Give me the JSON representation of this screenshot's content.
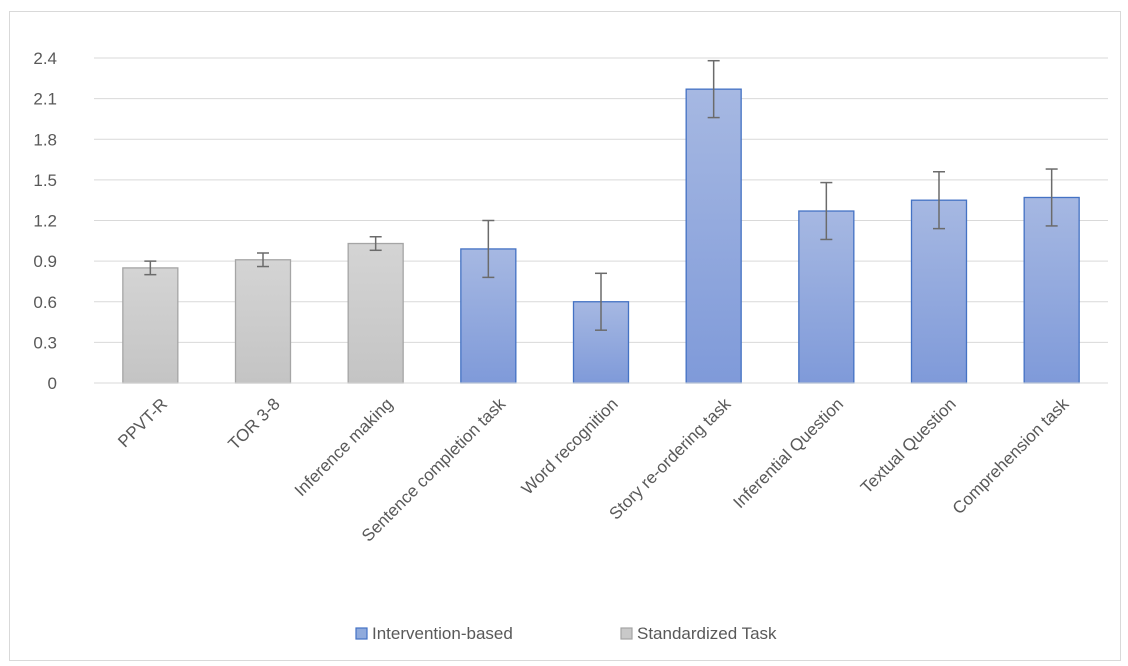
{
  "chart_data": {
    "type": "bar",
    "categories": [
      "PPVT-R",
      "TOR 3-8",
      "Inference making",
      "Sentence completion task",
      "Word recognition",
      "Story re-ordering task",
      "Inferential Question",
      "Textual Question",
      "Comprehension task"
    ],
    "values": [
      0.85,
      0.91,
      1.03,
      0.99,
      0.6,
      2.17,
      1.27,
      1.35,
      1.37
    ],
    "error_low": [
      0.8,
      0.86,
      0.98,
      0.78,
      0.39,
      1.96,
      1.06,
      1.14,
      1.16
    ],
    "error_high": [
      0.9,
      0.96,
      1.08,
      1.2,
      0.81,
      2.38,
      1.48,
      1.56,
      1.58
    ],
    "groups": [
      "Standardized Task",
      "Standardized Task",
      "Standardized Task",
      "Intervention-based",
      "Intervention-based",
      "Intervention-based",
      "Intervention-based",
      "Intervention-based",
      "Intervention-based"
    ],
    "ylim": [
      0,
      2.4
    ],
    "yticks": [
      "0",
      "0.3",
      "0.6",
      "0.9",
      "1.2",
      "1.5",
      "1.8",
      "2.1",
      "2.4"
    ],
    "grid": true,
    "legend_position": "bottom",
    "legend": [
      {
        "name": "Intervention-based",
        "color": "#8faadc"
      },
      {
        "name": "Standardized Task",
        "color": "#c9c9c9"
      }
    ],
    "colors": {
      "Intervention-based": {
        "top": "#a6b8e2",
        "bottom": "#7f9ad9",
        "stroke": "#4472c4"
      },
      "Standardized Task": {
        "top": "#d4d4d4",
        "bottom": "#c4c4c4",
        "stroke": "#a5a5a5"
      }
    },
    "title": "",
    "xlabel": "",
    "ylabel": ""
  }
}
